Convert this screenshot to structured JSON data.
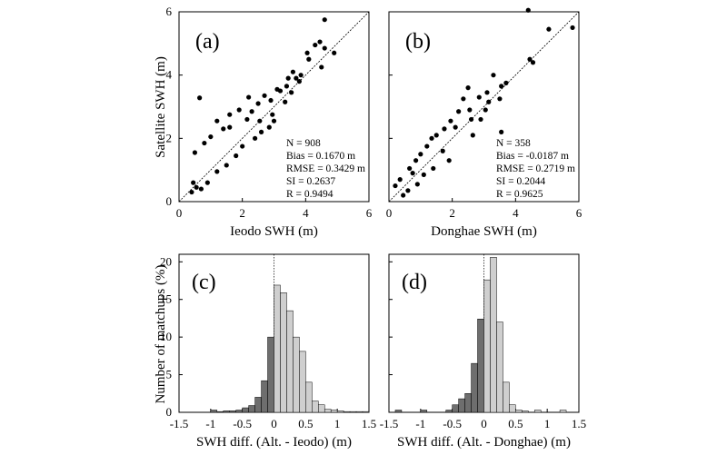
{
  "figure": {
    "ylabel_top": "Satellite SWH (m)",
    "ylabel_bottom": "Number of matchups (%)"
  },
  "chart_data": [
    {
      "id": "a",
      "type": "scatter",
      "panel_label": "(a)",
      "xlabel": "Ieodo SWH (m)",
      "ylabel": "Satellite SWH (m)",
      "xlim": [
        0,
        6
      ],
      "ylim": [
        0,
        6
      ],
      "xticks": [
        "0",
        "2",
        "4",
        "6"
      ],
      "yticks": [
        "0",
        "2",
        "4",
        "6"
      ],
      "one_to_one_line": true,
      "stats": [
        "N = 908",
        "Bias = 0.1670 m",
        "RMSE = 0.3429 m",
        "SI = 0.2637",
        "R = 0.9494"
      ],
      "points": [
        [
          0.65,
          3.28
        ],
        [
          4.6,
          5.75
        ],
        [
          4.45,
          5.05
        ],
        [
          4.9,
          4.7
        ],
        [
          4.6,
          4.85
        ],
        [
          4.3,
          4.95
        ],
        [
          4.05,
          4.7
        ],
        [
          3.85,
          4.0
        ],
        [
          3.6,
          4.1
        ],
        [
          3.7,
          3.9
        ],
        [
          4.5,
          4.25
        ],
        [
          3.4,
          3.65
        ],
        [
          3.2,
          3.5
        ],
        [
          3.1,
          3.55
        ],
        [
          2.9,
          3.2
        ],
        [
          3.35,
          3.15
        ],
        [
          2.5,
          3.1
        ],
        [
          2.3,
          2.85
        ],
        [
          2.55,
          2.55
        ],
        [
          2.15,
          2.6
        ],
        [
          2.7,
          3.35
        ],
        [
          1.6,
          2.75
        ],
        [
          1.9,
          2.9
        ],
        [
          1.2,
          2.55
        ],
        [
          1.4,
          2.3
        ],
        [
          1.0,
          2.05
        ],
        [
          0.8,
          1.85
        ],
        [
          0.5,
          1.55
        ],
        [
          0.45,
          0.6
        ],
        [
          0.4,
          0.3
        ],
        [
          0.55,
          0.45
        ],
        [
          3.0,
          2.55
        ],
        [
          2.85,
          2.35
        ],
        [
          2.6,
          2.2
        ],
        [
          2.0,
          1.75
        ],
        [
          1.8,
          1.45
        ],
        [
          1.5,
          1.15
        ],
        [
          1.2,
          0.95
        ],
        [
          0.9,
          0.6
        ],
        [
          0.7,
          0.4
        ],
        [
          3.8,
          3.8
        ],
        [
          3.45,
          3.9
        ],
        [
          4.1,
          4.5
        ],
        [
          2.2,
          3.3
        ],
        [
          1.6,
          2.35
        ],
        [
          2.4,
          2.0
        ],
        [
          2.95,
          2.75
        ],
        [
          3.55,
          3.45
        ]
      ]
    },
    {
      "id": "b",
      "type": "scatter",
      "panel_label": "(b)",
      "xlabel": "Donghae SWH (m)",
      "ylabel": "",
      "xlim": [
        0,
        6
      ],
      "ylim": [
        0,
        6
      ],
      "xticks": [
        "0",
        "2",
        "4",
        "6"
      ],
      "yticks": [],
      "one_to_one_line": true,
      "stats": [
        "N = 358",
        "Bias = -0.0187 m",
        "RMSE = 0.2719 m",
        "SI = 0.2044",
        "R = 0.9625"
      ],
      "points": [
        [
          4.4,
          6.05
        ],
        [
          5.05,
          5.45
        ],
        [
          5.8,
          5.5
        ],
        [
          4.45,
          4.5
        ],
        [
          4.55,
          4.4
        ],
        [
          3.3,
          4.0
        ],
        [
          3.7,
          3.75
        ],
        [
          3.55,
          3.65
        ],
        [
          3.1,
          3.45
        ],
        [
          3.5,
          3.25
        ],
        [
          3.15,
          3.15
        ],
        [
          2.5,
          3.6
        ],
        [
          2.85,
          3.3
        ],
        [
          2.35,
          3.25
        ],
        [
          2.55,
          2.9
        ],
        [
          2.2,
          2.85
        ],
        [
          2.6,
          2.6
        ],
        [
          1.95,
          2.55
        ],
        [
          2.1,
          2.35
        ],
        [
          1.75,
          2.3
        ],
        [
          1.5,
          2.1
        ],
        [
          1.35,
          2.0
        ],
        [
          1.2,
          1.75
        ],
        [
          1.0,
          1.5
        ],
        [
          0.85,
          1.3
        ],
        [
          0.2,
          0.5
        ],
        [
          0.65,
          1.05
        ],
        [
          3.55,
          2.2
        ],
        [
          2.65,
          2.1
        ],
        [
          3.05,
          2.9
        ],
        [
          1.7,
          1.6
        ],
        [
          1.9,
          1.3
        ],
        [
          1.4,
          1.05
        ],
        [
          1.1,
          0.85
        ],
        [
          0.9,
          0.55
        ],
        [
          0.6,
          0.35
        ],
        [
          0.45,
          0.2
        ],
        [
          0.35,
          0.7
        ],
        [
          0.75,
          0.9
        ],
        [
          2.9,
          2.6
        ]
      ]
    },
    {
      "id": "c",
      "type": "bar",
      "panel_label": "(c)",
      "xlabel": "SWH diff. (Alt. - Ieodo) (m)",
      "ylabel": "Number of matchups (%)",
      "xlim": [
        -1.5,
        1.5
      ],
      "ylim": [
        0,
        21
      ],
      "xticks": [
        "-1.5",
        "-1",
        "-0.5",
        "0",
        "0.5",
        "1",
        "1.5"
      ],
      "yticks": [
        "0",
        "5",
        "10",
        "15",
        "20"
      ],
      "bin_width": 0.1,
      "bin_left_edges": [
        -1.5,
        -1.4,
        -1.3,
        -1.2,
        -1.1,
        -1.0,
        -0.9,
        -0.8,
        -0.7,
        -0.6,
        -0.5,
        -0.4,
        -0.3,
        -0.2,
        -0.1,
        0.0,
        0.1,
        0.2,
        0.3,
        0.4,
        0.5,
        0.6,
        0.7,
        0.8,
        0.9,
        1.0,
        1.1,
        1.2,
        1.3,
        1.4
      ],
      "values": [
        0,
        0,
        0,
        0,
        0,
        0.3,
        0.1,
        0.2,
        0.2,
        0.3,
        0.6,
        0.9,
        2.0,
        4.2,
        10.0,
        16.9,
        15.9,
        13.5,
        10.0,
        8.1,
        4.0,
        1.5,
        1.0,
        0.4,
        0.3,
        0.2,
        0.1,
        0.1,
        0.1,
        0.1
      ]
    },
    {
      "id": "d",
      "type": "bar",
      "panel_label": "(d)",
      "xlabel": "SWH diff. (Alt. - Donghae) (m)",
      "ylabel": "",
      "xlim": [
        -1.5,
        1.5
      ],
      "ylim": [
        0,
        21
      ],
      "xticks": [
        "-1.5",
        "-1",
        "-0.5",
        "0",
        "0.5",
        "1",
        "1.5"
      ],
      "yticks": [],
      "bin_width": 0.1,
      "bin_left_edges": [
        -1.5,
        -1.4,
        -1.3,
        -1.2,
        -1.1,
        -1.0,
        -0.9,
        -0.8,
        -0.7,
        -0.6,
        -0.5,
        -0.4,
        -0.3,
        -0.2,
        -0.1,
        0.0,
        0.1,
        0.2,
        0.3,
        0.4,
        0.5,
        0.6,
        0.7,
        0.8,
        0.9,
        1.0,
        1.1,
        1.2,
        1.3,
        1.4
      ],
      "values": [
        0,
        0.3,
        0,
        0,
        0,
        0.3,
        0,
        0,
        0,
        0.3,
        1.0,
        1.8,
        2.5,
        6.5,
        12.4,
        17.6,
        20.6,
        12.0,
        4.0,
        1.0,
        0.3,
        0.2,
        0,
        0.3,
        0,
        0,
        0,
        0.3,
        0,
        0
      ]
    }
  ]
}
